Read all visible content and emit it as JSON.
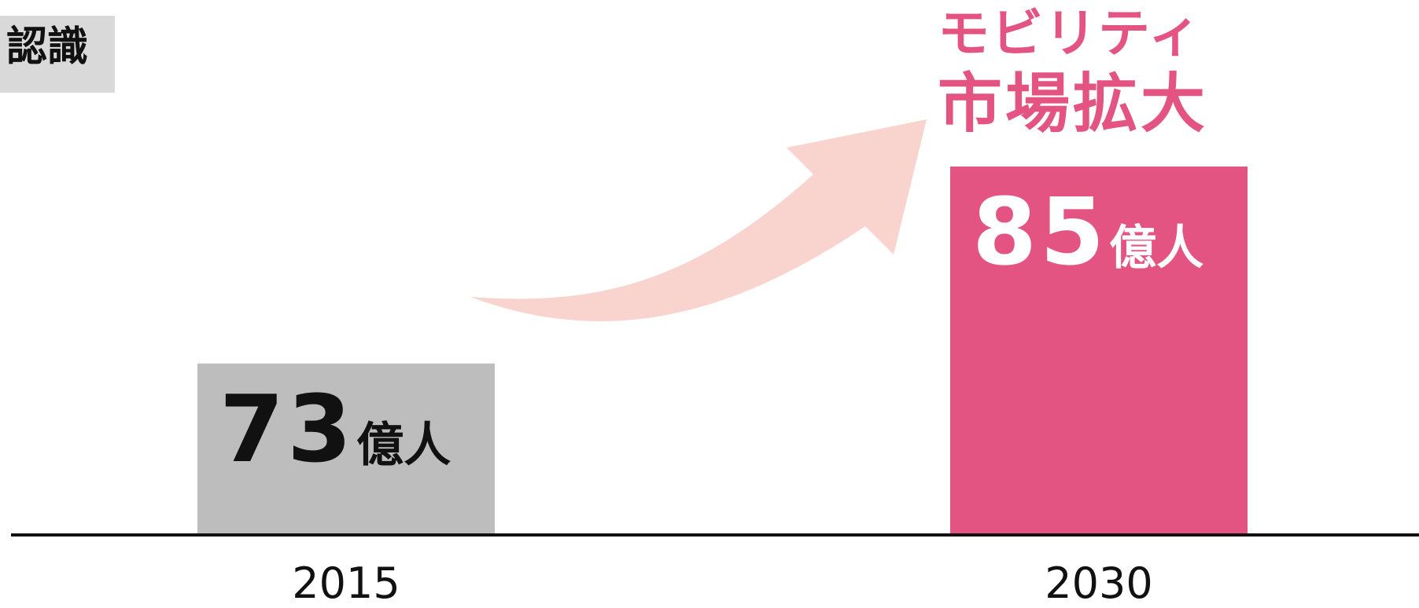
{
  "corner_label": "認識",
  "annotation": {
    "line1": "モビリティ",
    "line2": "市場拡大"
  },
  "chart_data": {
    "type": "bar",
    "title": "",
    "xlabel": "",
    "ylabel": "",
    "categories": [
      "2015",
      "2030"
    ],
    "values": [
      73,
      85
    ],
    "value_labels": [
      "73",
      "85"
    ],
    "unit": "億人",
    "colors": [
      "#bdbdbd",
      "#e45482"
    ],
    "label_colors": [
      "#111111",
      "#ffffff"
    ],
    "arrow_color": "#f9d3ce",
    "grid": false,
    "legend": "none"
  }
}
